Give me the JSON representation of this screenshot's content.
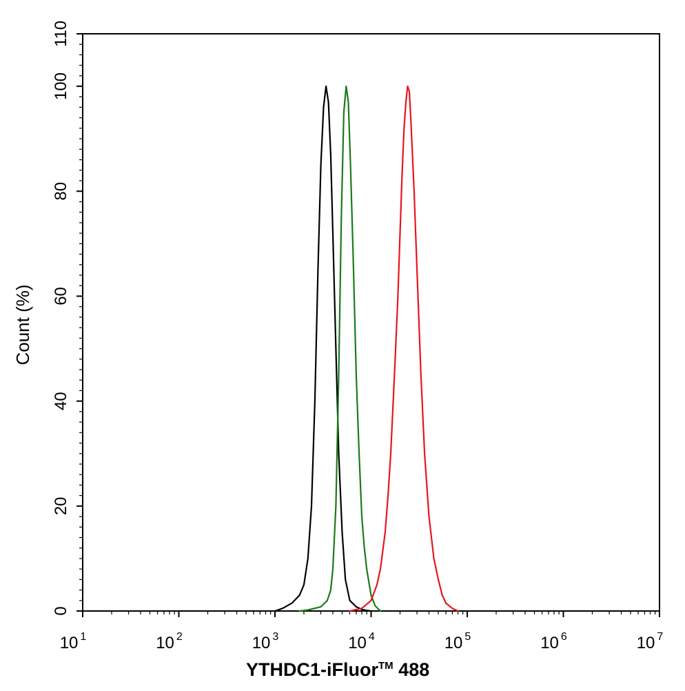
{
  "chart_data": {
    "type": "line",
    "title": "",
    "xlabel": "YTHDC1-iFluor",
    "xlabel_superscript": "TM",
    "xlabel_suffix": " 488",
    "ylabel": "Count  (%)",
    "x_scale": "log",
    "xlim": [
      10,
      10000000
    ],
    "ylim": [
      0,
      110
    ],
    "grid": false,
    "legend": "none",
    "x_ticks": [
      {
        "base": "10",
        "exp": "1"
      },
      {
        "base": "10",
        "exp": "2"
      },
      {
        "base": "10",
        "exp": "3"
      },
      {
        "base": "10",
        "exp": "4"
      },
      {
        "base": "10",
        "exp": "5"
      },
      {
        "base": "10",
        "exp": "6"
      },
      {
        "base": "10",
        "exp": "7"
      }
    ],
    "y_ticks": [
      "0",
      "20",
      "40",
      "60",
      "80",
      "100",
      "110"
    ],
    "series": [
      {
        "color": "#000000",
        "x": [
          1000,
          1200,
          1500,
          1800,
          2000,
          2200,
          2400,
          2600,
          2800,
          3000,
          3200,
          3400,
          3600,
          3800,
          4000,
          4300,
          4600,
          5000,
          5400,
          6000,
          7000,
          8000,
          9000,
          10000
        ],
        "y": [
          0,
          0.5,
          1.5,
          3,
          5,
          10,
          20,
          40,
          65,
          85,
          96,
          100,
          97,
          87,
          72,
          50,
          30,
          15,
          6,
          2,
          0.8,
          0.3,
          0.1,
          0
        ]
      },
      {
        "color": "#1a7a1a",
        "x": [
          1800,
          2200,
          3000,
          3500,
          3800,
          4000,
          4300,
          4600,
          4900,
          5200,
          5500,
          5800,
          6100,
          6500,
          7000,
          7500,
          8000,
          8500,
          9000,
          10000,
          11000,
          12500
        ],
        "y": [
          0,
          0.2,
          0.8,
          2,
          4,
          8,
          20,
          45,
          75,
          95,
          100,
          97,
          85,
          68,
          45,
          30,
          18,
          12,
          8,
          3,
          1,
          0
        ]
      },
      {
        "color": "#e8141c",
        "x": [
          6000,
          8000,
          10000,
          11500,
          12500,
          14000,
          15000,
          16000,
          17000,
          18000,
          19000,
          20000,
          21000,
          22000,
          23000,
          24000,
          25000,
          26000,
          28000,
          30000,
          33000,
          36000,
          40000,
          45000,
          50000,
          55000,
          60000,
          70000,
          80000
        ],
        "y": [
          0,
          0.5,
          2,
          5,
          8,
          15,
          22,
          30,
          40,
          50,
          60,
          72,
          83,
          92,
          97,
          100,
          99,
          93,
          80,
          65,
          45,
          30,
          18,
          10,
          6,
          3,
          1.5,
          0.5,
          0
        ]
      }
    ]
  }
}
